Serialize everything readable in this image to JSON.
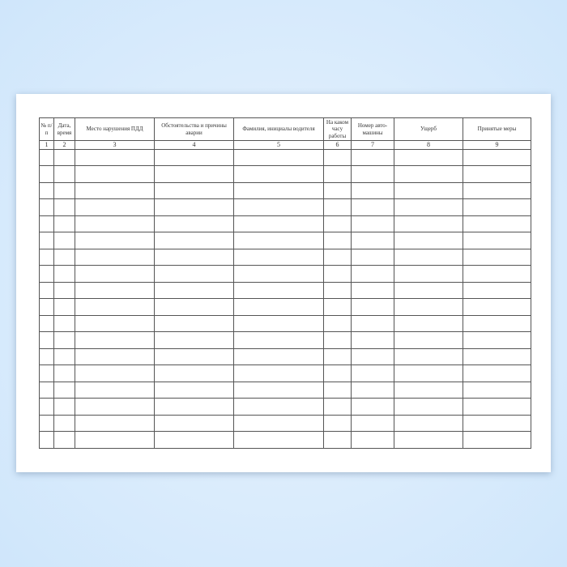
{
  "table": {
    "headers": [
      "№ п/п",
      "Дата, время",
      "Место нарушения ПДД",
      "Обстоятельства и причины аварии",
      "Фамилия, инициалы водителя",
      "На каком часу работы",
      "Номер авто-машины",
      "Ущерб",
      "Принятые меры"
    ],
    "column_numbers": [
      "1",
      "2",
      "3",
      "4",
      "5",
      "6",
      "7",
      "8",
      "9"
    ],
    "empty_row_count": 18
  }
}
